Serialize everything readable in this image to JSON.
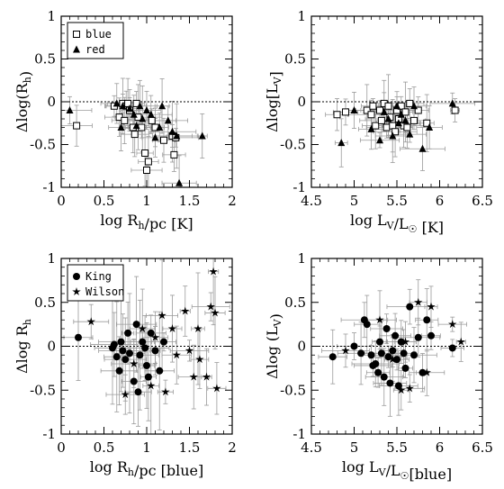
{
  "chart_data": [
    {
      "type": "scatter",
      "xlabel": "log R_h/pc [K]",
      "ylabel": "Δlog(R_h)",
      "xlim": [
        0,
        2
      ],
      "ylim": [
        -1,
        1
      ],
      "xticks": [
        "0",
        "0.5",
        "1",
        "1.5",
        "2"
      ],
      "yticks": [
        "-1",
        "-0.5",
        "0",
        "0.5",
        "1"
      ],
      "reference_line": 0,
      "legend": "top-left",
      "series": [
        {
          "name": "blue",
          "marker": "open-square",
          "points": [
            [
              0.18,
              -0.28
            ],
            [
              0.62,
              -0.05
            ],
            [
              0.68,
              -0.18
            ],
            [
              0.72,
              -0.02
            ],
            [
              0.74,
              -0.22
            ],
            [
              0.76,
              -0.05
            ],
            [
              0.78,
              -0.02
            ],
            [
              0.8,
              -0.1
            ],
            [
              0.84,
              -0.3
            ],
            [
              0.86,
              -0.38
            ],
            [
              0.88,
              -0.02
            ],
            [
              0.9,
              -0.18
            ],
            [
              0.94,
              -0.3
            ],
            [
              0.98,
              -0.6
            ],
            [
              1.0,
              -0.8
            ],
            [
              1.02,
              -0.7
            ],
            [
              1.06,
              -0.22
            ],
            [
              1.1,
              -0.3
            ],
            [
              1.2,
              -0.45
            ],
            [
              1.3,
              -0.4
            ],
            [
              1.32,
              -0.62
            ],
            [
              1.34,
              -0.42
            ]
          ]
        },
        {
          "name": "red",
          "marker": "filled-triangle",
          "points": [
            [
              0.1,
              -0.1
            ],
            [
              0.65,
              -0.02
            ],
            [
              0.7,
              -0.3
            ],
            [
              0.72,
              -0.05
            ],
            [
              0.8,
              -0.08
            ],
            [
              0.85,
              -0.15
            ],
            [
              0.88,
              -0.28
            ],
            [
              0.92,
              -0.05
            ],
            [
              0.95,
              -0.2
            ],
            [
              1.0,
              -0.1
            ],
            [
              1.05,
              -0.15
            ],
            [
              1.1,
              -0.42
            ],
            [
              1.15,
              -0.3
            ],
            [
              1.18,
              -0.05
            ],
            [
              1.25,
              -0.22
            ],
            [
              1.3,
              -0.35
            ],
            [
              1.35,
              -0.4
            ],
            [
              1.38,
              -0.95
            ],
            [
              1.65,
              -0.4
            ]
          ]
        }
      ]
    },
    {
      "type": "scatter",
      "xlabel": "log L_V/L_☉ [K]",
      "ylabel": "Δlog[L_V]",
      "xlim": [
        4.5,
        6.5
      ],
      "ylim": [
        -1,
        1
      ],
      "xticks": [
        "4.5",
        "5",
        "5.5",
        "6",
        "6.5"
      ],
      "yticks": [
        "-1",
        "-0.5",
        "0",
        "0.5",
        "1"
      ],
      "reference_line": 0,
      "legend": "none",
      "series": [
        {
          "name": "blue",
          "marker": "open-square",
          "points": [
            [
              4.8,
              -0.15
            ],
            [
              4.9,
              -0.12
            ],
            [
              5.15,
              -0.1
            ],
            [
              5.2,
              -0.15
            ],
            [
              5.22,
              -0.05
            ],
            [
              5.25,
              -0.28
            ],
            [
              5.3,
              -0.1
            ],
            [
              5.32,
              -0.22
            ],
            [
              5.35,
              -0.02
            ],
            [
              5.38,
              -0.3
            ],
            [
              5.4,
              -0.05
            ],
            [
              5.42,
              -0.18
            ],
            [
              5.45,
              -0.28
            ],
            [
              5.48,
              -0.35
            ],
            [
              5.5,
              -0.1
            ],
            [
              5.52,
              -0.2
            ],
            [
              5.55,
              -0.05
            ],
            [
              5.58,
              -0.28
            ],
            [
              5.6,
              -0.12
            ],
            [
              5.62,
              -0.3
            ],
            [
              5.65,
              -0.02
            ],
            [
              5.7,
              -0.22
            ],
            [
              5.75,
              -0.1
            ],
            [
              5.85,
              -0.25
            ],
            [
              6.18,
              -0.1
            ]
          ]
        },
        {
          "name": "red",
          "marker": "filled-triangle",
          "points": [
            [
              4.85,
              -0.48
            ],
            [
              5.0,
              -0.1
            ],
            [
              5.2,
              -0.32
            ],
            [
              5.3,
              -0.45
            ],
            [
              5.35,
              -0.12
            ],
            [
              5.4,
              -0.2
            ],
            [
              5.45,
              -0.4
            ],
            [
              5.5,
              -0.05
            ],
            [
              5.52,
              -0.25
            ],
            [
              5.55,
              -0.15
            ],
            [
              5.6,
              -0.22
            ],
            [
              5.65,
              -0.38
            ],
            [
              5.7,
              -0.05
            ],
            [
              5.8,
              -0.55
            ],
            [
              5.88,
              -0.3
            ],
            [
              6.15,
              -0.02
            ]
          ]
        }
      ]
    },
    {
      "type": "scatter",
      "xlabel": "log R_h/pc [blue]",
      "ylabel": "Δlog R_h",
      "xlim": [
        0,
        2
      ],
      "ylim": [
        -1,
        1
      ],
      "xticks": [
        "0",
        "0.5",
        "1",
        "1.5",
        "2"
      ],
      "yticks": [
        "-1",
        "-0.5",
        "0",
        "0.5",
        "1"
      ],
      "reference_line": 0,
      "legend": "top-left",
      "series": [
        {
          "name": "King",
          "marker": "filled-circle",
          "points": [
            [
              0.2,
              0.1
            ],
            [
              0.6,
              -0.02
            ],
            [
              0.62,
              0.02
            ],
            [
              0.65,
              -0.12
            ],
            [
              0.68,
              -0.28
            ],
            [
              0.7,
              0.05
            ],
            [
              0.72,
              -0.05
            ],
            [
              0.75,
              -0.15
            ],
            [
              0.78,
              0.15
            ],
            [
              0.8,
              -0.08
            ],
            [
              0.85,
              -0.4
            ],
            [
              0.88,
              0.25
            ],
            [
              0.9,
              -0.52
            ],
            [
              0.92,
              -0.1
            ],
            [
              0.95,
              0.05
            ],
            [
              0.98,
              -0.02
            ],
            [
              1.0,
              -0.22
            ],
            [
              1.02,
              -0.35
            ],
            [
              1.05,
              0.15
            ],
            [
              1.1,
              -0.05
            ],
            [
              1.15,
              -0.28
            ],
            [
              1.2,
              0.05
            ]
          ]
        },
        {
          "name": "Wilson",
          "marker": "star",
          "points": [
            [
              0.35,
              0.28
            ],
            [
              0.75,
              -0.55
            ],
            [
              0.85,
              -0.2
            ],
            [
              0.95,
              0.2
            ],
            [
              1.05,
              -0.45
            ],
            [
              1.1,
              0.1
            ],
            [
              1.18,
              0.35
            ],
            [
              1.22,
              -0.52
            ],
            [
              1.3,
              0.2
            ],
            [
              1.35,
              -0.1
            ],
            [
              1.45,
              0.4
            ],
            [
              1.5,
              -0.05
            ],
            [
              1.55,
              -0.35
            ],
            [
              1.6,
              0.2
            ],
            [
              1.62,
              -0.15
            ],
            [
              1.7,
              -0.35
            ],
            [
              1.75,
              0.45
            ],
            [
              1.78,
              0.85
            ],
            [
              1.8,
              0.38
            ],
            [
              1.82,
              -0.48
            ]
          ]
        }
      ]
    },
    {
      "type": "scatter",
      "xlabel": "log L_V/L_☉[blue]",
      "ylabel": "Δlog (L_V)",
      "xlim": [
        4.5,
        6.5
      ],
      "ylim": [
        -1,
        1
      ],
      "xticks": [
        "4.5",
        "5",
        "5.5",
        "6",
        "6.5"
      ],
      "yticks": [
        "-1",
        "-0.5",
        "0",
        "0.5",
        "1"
      ],
      "reference_line": 0,
      "legend": "none",
      "series": [
        {
          "name": "King",
          "marker": "filled-circle",
          "points": [
            [
              4.75,
              -0.12
            ],
            [
              5.0,
              0.0
            ],
            [
              5.08,
              -0.08
            ],
            [
              5.12,
              0.3
            ],
            [
              5.15,
              0.25
            ],
            [
              5.2,
              -0.1
            ],
            [
              5.22,
              -0.22
            ],
            [
              5.25,
              -0.2
            ],
            [
              5.28,
              -0.3
            ],
            [
              5.3,
              0.05
            ],
            [
              5.32,
              -0.08
            ],
            [
              5.35,
              -0.35
            ],
            [
              5.38,
              0.2
            ],
            [
              5.4,
              -0.12
            ],
            [
              5.42,
              -0.42
            ],
            [
              5.45,
              -0.05
            ],
            [
              5.48,
              0.12
            ],
            [
              5.5,
              -0.15
            ],
            [
              5.52,
              -0.45
            ],
            [
              5.55,
              0.05
            ],
            [
              5.58,
              -0.08
            ],
            [
              5.6,
              -0.25
            ],
            [
              5.65,
              0.45
            ],
            [
              5.7,
              -0.1
            ],
            [
              5.75,
              0.1
            ],
            [
              5.8,
              -0.3
            ],
            [
              5.85,
              0.3
            ],
            [
              5.9,
              0.12
            ],
            [
              6.15,
              -0.02
            ]
          ]
        },
        {
          "name": "Wilson",
          "marker": "star",
          "points": [
            [
              4.9,
              -0.05
            ],
            [
              5.3,
              0.3
            ],
            [
              5.45,
              -0.15
            ],
            [
              5.55,
              -0.5
            ],
            [
              5.6,
              0.05
            ],
            [
              5.65,
              -0.48
            ],
            [
              5.75,
              0.5
            ],
            [
              5.85,
              -0.3
            ],
            [
              5.9,
              0.45
            ],
            [
              6.15,
              0.25
            ],
            [
              6.25,
              0.05
            ]
          ]
        }
      ]
    }
  ],
  "legends": [
    [
      {
        "label": "blue",
        "marker": "open-square"
      },
      {
        "label": "red",
        "marker": "filled-triangle"
      }
    ],
    [],
    [
      {
        "label": "King",
        "marker": "filled-circle"
      },
      {
        "label": "Wilson",
        "marker": "star"
      }
    ],
    []
  ]
}
